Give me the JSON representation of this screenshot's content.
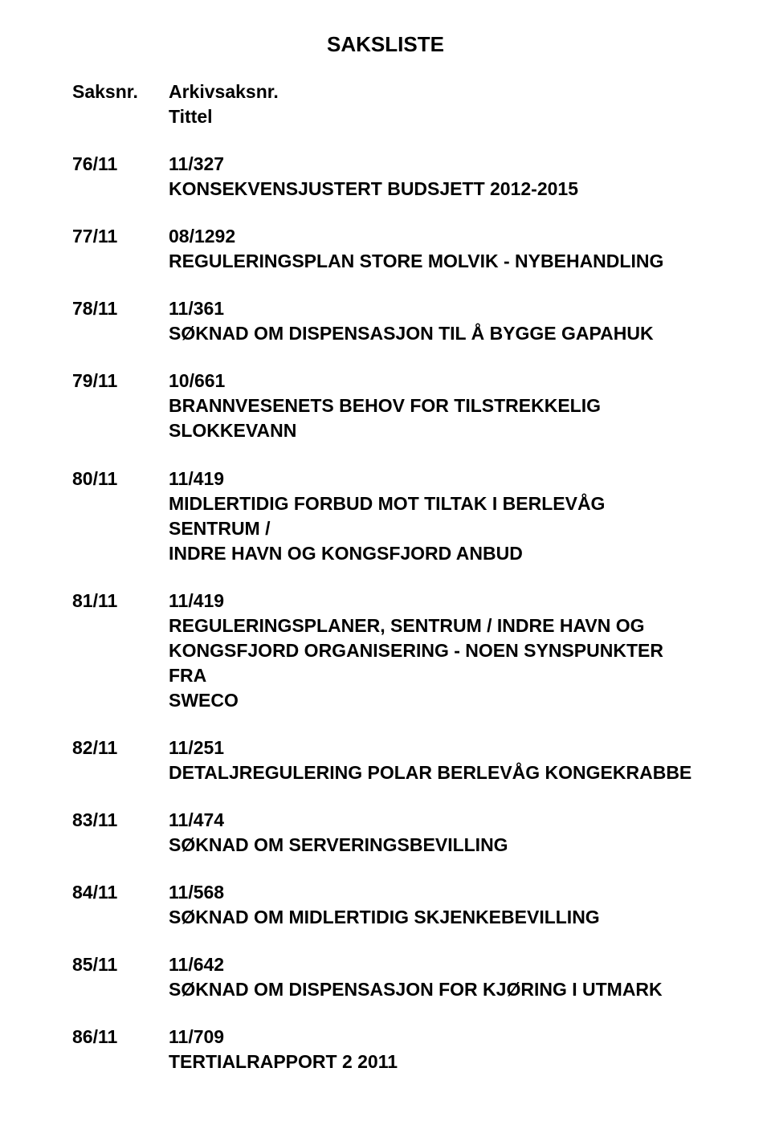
{
  "title": "SAKSLISTE",
  "header": {
    "left": "Saksnr.",
    "right_top": "Arkivsaksnr.",
    "right_bottom": "Tittel"
  },
  "entries": [
    {
      "saksnr": "76/11",
      "arkiv": "11/327",
      "lines": [
        "KONSEKVENSJUSTERT BUDSJETT 2012-2015"
      ]
    },
    {
      "saksnr": "77/11",
      "arkiv": "08/1292",
      "lines": [
        "REGULERINGSPLAN STORE MOLVIK - NYBEHANDLING"
      ]
    },
    {
      "saksnr": "78/11",
      "arkiv": "11/361",
      "lines": [
        "SØKNAD OM DISPENSASJON TIL Å BYGGE GAPAHUK"
      ]
    },
    {
      "saksnr": "79/11",
      "arkiv": "10/661",
      "lines": [
        "BRANNVESENETS BEHOV FOR TILSTREKKELIG",
        "SLOKKEVANN"
      ]
    },
    {
      "saksnr": "80/11",
      "arkiv": "11/419",
      "lines": [
        "MIDLERTIDIG FORBUD MOT TILTAK I BERLEVÅG SENTRUM /",
        "INDRE HAVN OG KONGSFJORD ANBUD"
      ]
    },
    {
      "saksnr": "81/11",
      "arkiv": "11/419",
      "lines": [
        "REGULERINGSPLANER, SENTRUM / INDRE HAVN OG",
        "KONGSFJORD ORGANISERING - NOEN SYNSPUNKTER FRA",
        "SWECO"
      ]
    },
    {
      "saksnr": "82/11",
      "arkiv": "11/251",
      "lines": [
        "DETALJREGULERING POLAR BERLEVÅG KONGEKRABBE"
      ]
    },
    {
      "saksnr": "83/11",
      "arkiv": "11/474",
      "lines": [
        "SØKNAD OM SERVERINGSBEVILLING"
      ]
    },
    {
      "saksnr": "84/11",
      "arkiv": "11/568",
      "lines": [
        "SØKNAD OM MIDLERTIDIG SKJENKEBEVILLING"
      ]
    },
    {
      "saksnr": "85/11",
      "arkiv": "11/642",
      "lines": [
        "SØKNAD OM DISPENSASJON FOR KJØRING I UTMARK"
      ]
    },
    {
      "saksnr": "86/11",
      "arkiv": "11/709",
      "lines": [
        "TERTIALRAPPORT 2 2011"
      ]
    }
  ]
}
